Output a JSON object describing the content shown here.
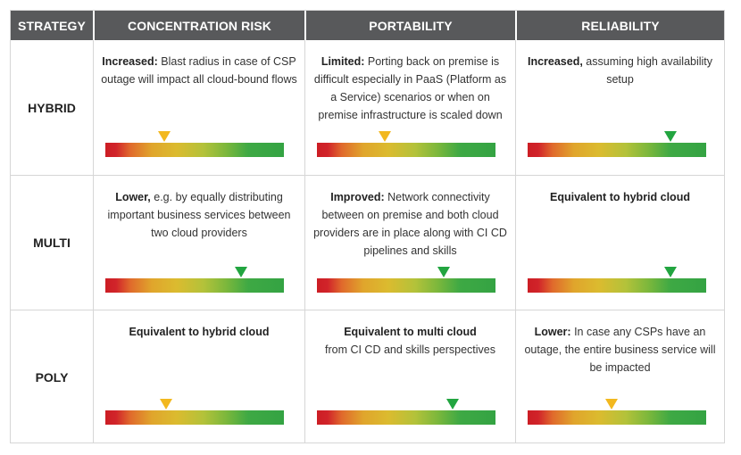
{
  "headers": {
    "strategy": "STRATEGY",
    "concentration": "CONCENTRATION RISK",
    "portability": "PORTABILITY",
    "reliability": "RELIABILITY"
  },
  "rows": [
    {
      "label": "HYBRID",
      "cells": [
        {
          "bold": "Increased:",
          "rest": " Blast radius in case of CSP outage will impact all cloud-bound flows",
          "level": 0.33,
          "marker_color": "#f2b81f"
        },
        {
          "bold": "Limited:",
          "rest": " Porting back on premise is difficult especially in PaaS (Platform as a Service) scenarios or when on premise infrastructure is scaled down",
          "level": 0.38,
          "marker_color": "#f2b81f"
        },
        {
          "bold": "Increased,",
          "rest": " assuming high availability setup",
          "level": 0.8,
          "marker_color": "#22a540"
        }
      ]
    },
    {
      "label": "MULTI",
      "cells": [
        {
          "bold": "Lower,",
          "rest": " e.g. by equally distributing important business services between two cloud providers",
          "level": 0.76,
          "marker_color": "#22a540"
        },
        {
          "bold": "Improved:",
          "rest": " Network connectivity between on premise and both cloud providers are in place along with CI CD pipelines and skills",
          "level": 0.71,
          "marker_color": "#22a540"
        },
        {
          "bold": "Equivalent to hybrid cloud",
          "rest": "",
          "level": 0.8,
          "marker_color": "#22a540"
        }
      ]
    },
    {
      "label": "POLY",
      "cells": [
        {
          "bold": "Equivalent to hybrid cloud",
          "rest": "",
          "level": 0.34,
          "marker_color": "#f2b81f"
        },
        {
          "bold": "Equivalent to multi cloud",
          "rest": " from CI CD and skills perspectives",
          "level": 0.76,
          "marker_color": "#22a540",
          "rest_newline": true
        },
        {
          "bold": "Lower:",
          "rest": " In case any CSPs have an outage, the entire business service will be impacted",
          "level": 0.47,
          "marker_color": "#f2b81f"
        }
      ]
    }
  ],
  "colors": {
    "header_bg": "#58595b",
    "header_text": "#ffffff",
    "scale_red": "#cc1d24",
    "scale_yellow": "#dbbb2f",
    "scale_green": "#34a343"
  }
}
